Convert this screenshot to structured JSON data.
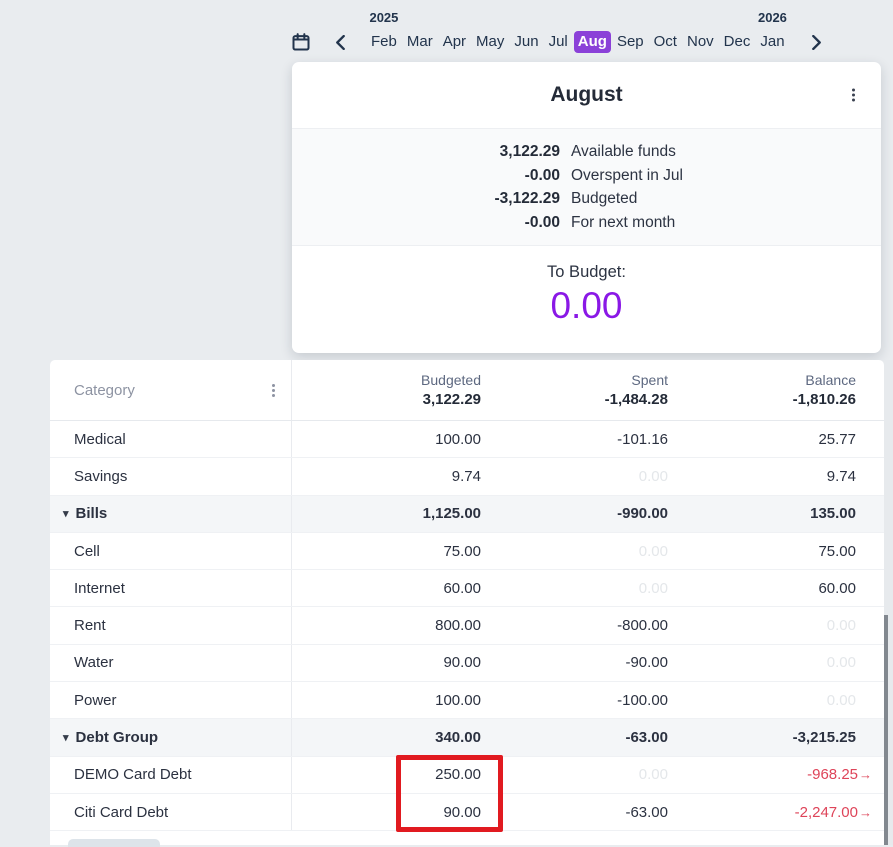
{
  "colors": {
    "page_bg": "#e9ecef",
    "accent_purple": "#8b41d8",
    "to_budget_purple": "#8a18e6",
    "navy_text": "#22344c",
    "negative_red": "#de4459",
    "annotation_red": "#e11a20",
    "faded_value": "#e4e7ea"
  },
  "month_bar": {
    "months": [
      {
        "label": "Feb",
        "year": "2025"
      },
      {
        "label": "Mar"
      },
      {
        "label": "Apr"
      },
      {
        "label": "May"
      },
      {
        "label": "Jun"
      },
      {
        "label": "Jul"
      },
      {
        "label": "Aug",
        "selected": true
      },
      {
        "label": "Sep"
      },
      {
        "label": "Oct"
      },
      {
        "label": "Nov"
      },
      {
        "label": "Dec"
      },
      {
        "label": "Jan",
        "year": "2026"
      }
    ]
  },
  "summary_card": {
    "title": "August",
    "funds": [
      {
        "value": "3,122.29",
        "label": "Available funds"
      },
      {
        "value": "-0.00",
        "label": "Overspent in Jul"
      },
      {
        "value": "-3,122.29",
        "label": "Budgeted"
      },
      {
        "value": "-0.00",
        "label": "For next month"
      }
    ],
    "to_budget_label": "To Budget:",
    "to_budget_value": "0.00"
  },
  "table": {
    "category_header": "Category",
    "columns": [
      {
        "label": "Budgeted",
        "total": "3,122.29"
      },
      {
        "label": "Spent",
        "total": "-1,484.28"
      },
      {
        "label": "Balance",
        "total": "-1,810.26"
      }
    ],
    "rows": [
      {
        "name": "Medical",
        "budgeted": "100.00",
        "spent": "-101.16",
        "balance": "25.77"
      },
      {
        "name": "Savings",
        "budgeted": "9.74",
        "spent": "0.00",
        "spent_faded": true,
        "balance": "9.74"
      },
      {
        "name": "Bills",
        "group": true,
        "budgeted": "1,125.00",
        "spent": "-990.00",
        "balance": "135.00"
      },
      {
        "name": "Cell",
        "budgeted": "75.00",
        "spent": "0.00",
        "spent_faded": true,
        "balance": "75.00"
      },
      {
        "name": "Internet",
        "budgeted": "60.00",
        "spent": "0.00",
        "spent_faded": true,
        "balance": "60.00"
      },
      {
        "name": "Rent",
        "budgeted": "800.00",
        "spent": "-800.00",
        "balance": "0.00",
        "balance_faded": true
      },
      {
        "name": "Water",
        "budgeted": "90.00",
        "spent": "-90.00",
        "balance": "0.00",
        "balance_faded": true
      },
      {
        "name": "Power",
        "budgeted": "100.00",
        "spent": "-100.00",
        "balance": "0.00",
        "balance_faded": true
      },
      {
        "name": "Debt Group",
        "group": true,
        "budgeted": "340.00",
        "spent": "-63.00",
        "balance": "-3,215.25"
      },
      {
        "name": "DEMO Card Debt",
        "budgeted": "250.00",
        "spent": "0.00",
        "spent_faded": true,
        "balance": "-968.25",
        "balance_red": true,
        "balance_arrow": "→"
      },
      {
        "name": "Citi Card Debt",
        "budgeted": "90.00",
        "spent": "-63.00",
        "balance": "-2,247.00",
        "balance_red": true,
        "balance_arrow": "→"
      }
    ]
  }
}
